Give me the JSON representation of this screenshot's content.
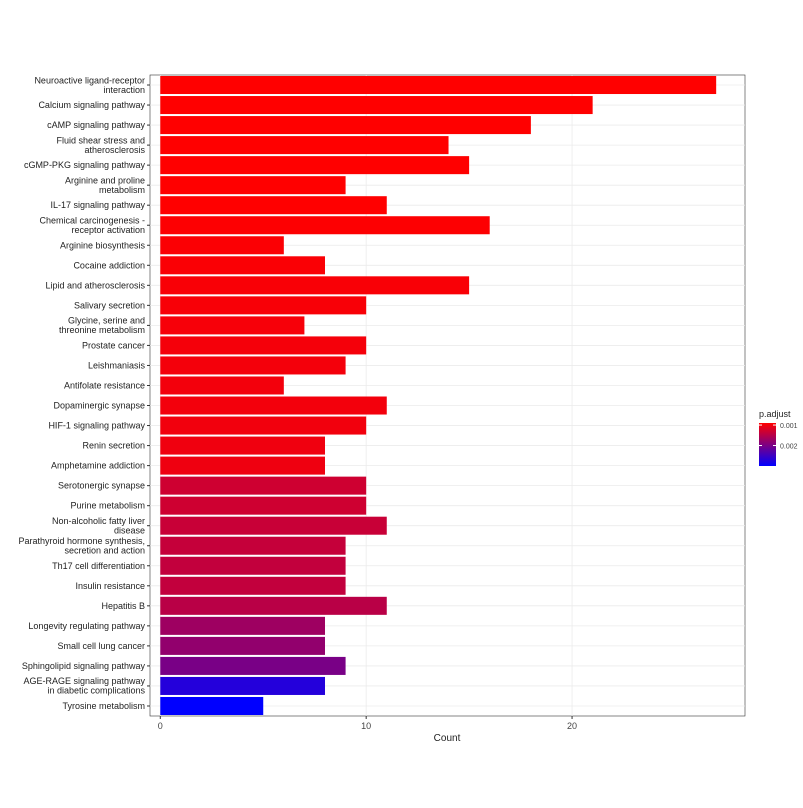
{
  "chart_data": {
    "type": "bar",
    "orientation": "horizontal",
    "xlabel": "Count",
    "ylabel": "",
    "xlim": [
      -0.5,
      28.4
    ],
    "xticks": [
      0,
      10,
      20
    ],
    "grid": true,
    "legend": {
      "title": "p.adjust",
      "placement": "right",
      "ticks": [
        0.001,
        0.002
      ],
      "range": [
        0.0009,
        0.003
      ],
      "low_color": "#FF0000",
      "high_color": "#0000FF"
    },
    "categories": [
      "Neuroactive ligand-receptor\ninteraction",
      "Calcium signaling pathway",
      "cAMP signaling pathway",
      "Fluid shear stress and\natherosclerosis",
      "cGMP-PKG signaling pathway",
      "Arginine and proline\nmetabolism",
      "IL-17 signaling pathway",
      "Chemical carcinogenesis -\nreceptor activation",
      "Arginine biosynthesis",
      "Cocaine addiction",
      "Lipid and atherosclerosis",
      "Salivary secretion",
      "Glycine, serine and\nthreonine metabolism",
      "Prostate cancer",
      "Leishmaniasis",
      "Antifolate resistance",
      "Dopaminergic synapse",
      "HIF-1 signaling pathway",
      "Renin secretion",
      "Amphetamine addiction",
      "Serotonergic synapse",
      "Purine metabolism",
      "Non-alcoholic fatty liver\ndisease",
      "Parathyroid hormone\nsynthesis, secretion and\naction",
      "Th17 cell differentiation",
      "Insulin resistance",
      "Hepatitis B",
      "Longevity regulating pathway",
      "Small cell lung cancer",
      "Sphingolipid signaling pathway",
      "AGE-RAGE signaling pathway\nin diabetic complications",
      "Tyrosine metabolism"
    ],
    "values": [
      27,
      21,
      18,
      14,
      15,
      9,
      11,
      16,
      6,
      8,
      15,
      10,
      7,
      10,
      9,
      6,
      11,
      10,
      8,
      8,
      10,
      10,
      11,
      9,
      9,
      9,
      11,
      8,
      8,
      9,
      8,
      5
    ],
    "p_adjust": [
      0.0009,
      0.0009,
      0.0009,
      0.0009,
      0.0009,
      0.0009,
      0.0009,
      0.00092,
      0.00093,
      0.00094,
      0.00095,
      0.00096,
      0.00097,
      0.00098,
      0.00099,
      0.001,
      0.001,
      0.00101,
      0.00102,
      0.00103,
      0.0013,
      0.0013,
      0.00135,
      0.00138,
      0.0014,
      0.0014,
      0.00148,
      0.0017,
      0.0018,
      0.002,
      0.0027,
      0.003
    ]
  }
}
